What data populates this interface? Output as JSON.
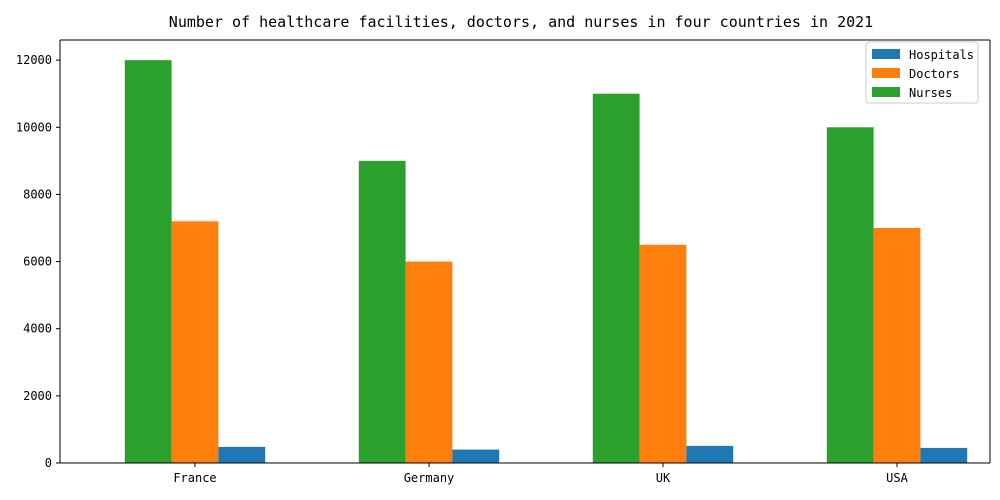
{
  "chart_data": {
    "type": "bar",
    "title": "Number of healthcare facilities, doctors, and nurses in four countries in 2021",
    "xlabel": "",
    "ylabel": "",
    "categories": [
      "France",
      "Germany",
      "UK",
      "USA"
    ],
    "series": [
      {
        "name": "Hospitals",
        "color": "#1f77b4",
        "values": [
          480,
          400,
          510,
          450
        ]
      },
      {
        "name": "Doctors",
        "color": "#ff7f0e",
        "values": [
          7200,
          6000,
          6500,
          7000
        ]
      },
      {
        "name": "Nurses",
        "color": "#2ca02c",
        "values": [
          12000,
          9000,
          11000,
          10000
        ]
      }
    ],
    "draw_order": [
      "Nurses",
      "Doctors",
      "Hospitals"
    ],
    "ylim": [
      0,
      12600
    ],
    "yticks": [
      0,
      2000,
      4000,
      6000,
      8000,
      10000,
      12000
    ],
    "grid": false,
    "legend_position": "top-right"
  }
}
